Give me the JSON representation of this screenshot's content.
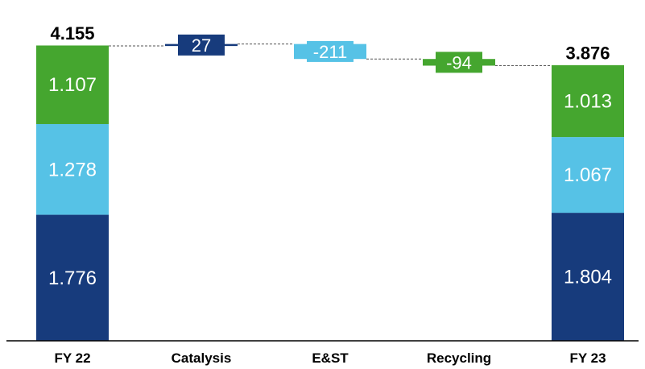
{
  "chart_data": {
    "type": "bar",
    "subtype": "waterfall",
    "categories": [
      "FY 22",
      "Catalysis",
      "E&ST",
      "Recycling",
      "FY 23"
    ],
    "colors": {
      "catalysis": "#173b7c",
      "est": "#56c2e6",
      "recycling": "#45a62f",
      "baseline": "#000000",
      "connector": "#555555"
    },
    "start": {
      "category": "FY 22",
      "total": 4.155,
      "total_label": "4.155",
      "segments": [
        {
          "key": "catalysis",
          "value": 1.776,
          "label": "1.776"
        },
        {
          "key": "est",
          "value": 1.278,
          "label": "1.278"
        },
        {
          "key": "recycling",
          "value": 1.107,
          "label": "1.107"
        }
      ]
    },
    "deltas": [
      {
        "category": "Catalysis",
        "key": "catalysis",
        "value": 0.027,
        "label": "27"
      },
      {
        "category": "E&ST",
        "key": "est",
        "value": -0.211,
        "label": "-211"
      },
      {
        "category": "Recycling",
        "key": "recycling",
        "value": -0.094,
        "label": "-94"
      }
    ],
    "end": {
      "category": "FY 23",
      "total": 3.876,
      "total_label": "3.876",
      "segments": [
        {
          "key": "catalysis",
          "value": 1.804,
          "label": "1.804"
        },
        {
          "key": "est",
          "value": 1.067,
          "label": "1.067"
        },
        {
          "key": "recycling",
          "value": 1.013,
          "label": "1.013"
        }
      ]
    },
    "ylim": [
      0,
      4.5
    ],
    "grid": false,
    "legend": "none"
  }
}
